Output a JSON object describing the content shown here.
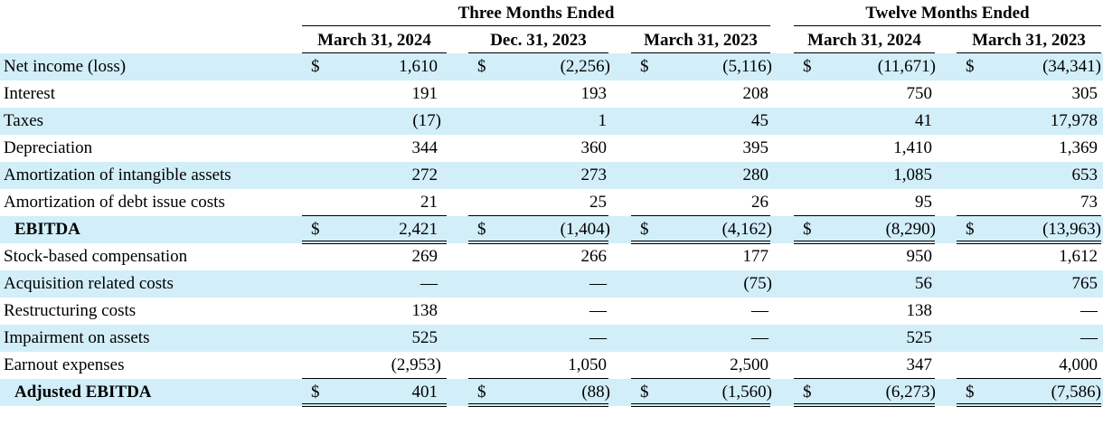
{
  "header": {
    "group_three": "Three Months Ended",
    "group_twelve": "Twelve Months Ended",
    "columns": [
      "March 31, 2024",
      "Dec. 31, 2023",
      "March 31, 2023",
      "March 31, 2024",
      "March 31, 2023"
    ]
  },
  "currency_symbol": "$",
  "shade_color": "#d2eef9",
  "rows": [
    {
      "label": "Net income (loss)",
      "values": [
        "1,610",
        "(2,256)",
        "(5,116)",
        "(11,671)",
        "(34,341)"
      ],
      "dollar": true,
      "bold": false
    },
    {
      "label": "Interest",
      "values": [
        "191",
        "193",
        "208",
        "750",
        "305"
      ],
      "dollar": false,
      "bold": false
    },
    {
      "label": "Taxes",
      "values": [
        "(17)",
        "1",
        "45",
        "41",
        "17,978"
      ],
      "dollar": false,
      "bold": false
    },
    {
      "label": "Depreciation",
      "values": [
        "344",
        "360",
        "395",
        "1,410",
        "1,369"
      ],
      "dollar": false,
      "bold": false
    },
    {
      "label": "Amortization of intangible assets",
      "values": [
        "272",
        "273",
        "280",
        "1,085",
        "653"
      ],
      "dollar": false,
      "bold": false
    },
    {
      "label": "Amortization of debt issue costs",
      "values": [
        "21",
        "25",
        "26",
        "95",
        "73"
      ],
      "dollar": false,
      "bold": false
    },
    {
      "label": "EBITDA",
      "values": [
        "2,421",
        "(1,404)",
        "(4,162)",
        "(8,290)",
        "(13,963)"
      ],
      "dollar": true,
      "bold": true
    },
    {
      "label": "Stock-based compensation",
      "values": [
        "269",
        "266",
        "177",
        "950",
        "1,612"
      ],
      "dollar": false,
      "bold": false
    },
    {
      "label": "Acquisition related costs",
      "values": [
        "—",
        "—",
        "(75)",
        "56",
        "765"
      ],
      "dollar": false,
      "bold": false
    },
    {
      "label": "Restructuring costs",
      "values": [
        "138",
        "—",
        "—",
        "138",
        "—"
      ],
      "dollar": false,
      "bold": false
    },
    {
      "label": "Impairment on assets",
      "values": [
        "525",
        "—",
        "—",
        "525",
        "—"
      ],
      "dollar": false,
      "bold": false
    },
    {
      "label": "Earnout expenses",
      "values": [
        "(2,953)",
        "1,050",
        "2,500",
        "347",
        "4,000"
      ],
      "dollar": false,
      "bold": false
    },
    {
      "label": "Adjusted EBITDA",
      "values": [
        "401",
        "(88)",
        "(1,560)",
        "(6,273)",
        "(7,586)"
      ],
      "dollar": true,
      "bold": true
    }
  ]
}
